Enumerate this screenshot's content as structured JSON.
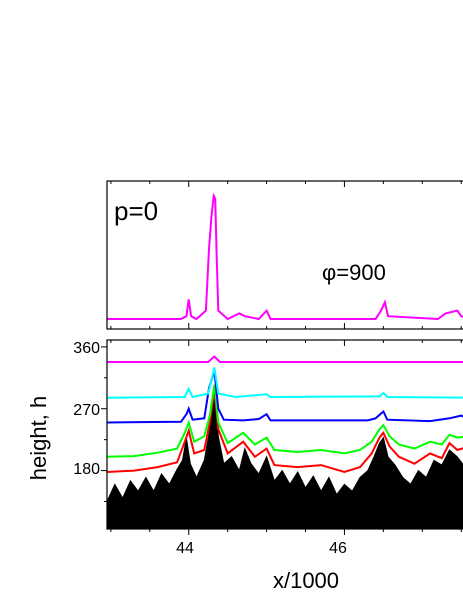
{
  "chart_data": [
    {
      "type": "line",
      "panel": "top",
      "annotations": [
        "p=0",
        "φ=900"
      ],
      "xlim": [
        42.95,
        47.6
      ],
      "y_ticks_labeled": false,
      "grid": false,
      "series": [
        {
          "color": "#ff00ff",
          "points": [
            [
              42.95,
              0
            ],
            [
              43.9,
              0
            ],
            [
              43.97,
              0.1
            ],
            [
              44.0,
              0.7
            ],
            [
              44.03,
              0.1
            ],
            [
              44.1,
              0
            ],
            [
              44.22,
              0.3
            ],
            [
              44.26,
              2.5
            ],
            [
              44.29,
              3.6
            ],
            [
              44.32,
              4.4
            ],
            [
              44.34,
              4.3
            ],
            [
              44.36,
              2.1
            ],
            [
              44.38,
              0.3
            ],
            [
              44.5,
              0
            ],
            [
              44.65,
              0.2
            ],
            [
              44.72,
              0.1
            ],
            [
              44.9,
              0
            ],
            [
              45.0,
              0.3
            ],
            [
              45.05,
              0
            ],
            [
              46.4,
              0
            ],
            [
              46.47,
              0.3
            ],
            [
              46.52,
              0.6
            ],
            [
              46.56,
              0.1
            ],
            [
              47.2,
              0
            ],
            [
              47.3,
              0.2
            ],
            [
              47.45,
              0.3
            ],
            [
              47.5,
              0.1
            ],
            [
              47.6,
              0
            ]
          ]
        }
      ]
    },
    {
      "type": "area",
      "panel": "bottom",
      "xlabel": "x/1000",
      "ylabel": "height, h",
      "xlim": [
        42.95,
        47.6
      ],
      "ylim": [
        95,
        370
      ],
      "x_ticks": [
        44,
        46
      ],
      "y_ticks": [
        180,
        270,
        360
      ],
      "grid": false,
      "series": [
        {
          "color": "#ff00ff",
          "points": [
            [
              42.95,
              338
            ],
            [
              44.25,
              338
            ],
            [
              44.33,
              346
            ],
            [
              44.4,
              338
            ],
            [
              47.6,
              338
            ]
          ]
        },
        {
          "color": "#00ffff",
          "points": [
            [
              42.95,
              286
            ],
            [
              43.95,
              287
            ],
            [
              44.0,
              299
            ],
            [
              44.05,
              287
            ],
            [
              44.25,
              292
            ],
            [
              44.33,
              330
            ],
            [
              44.38,
              292
            ],
            [
              44.6,
              287
            ],
            [
              45.0,
              291
            ],
            [
              45.05,
              287
            ],
            [
              46.45,
              288
            ],
            [
              46.5,
              293
            ],
            [
              46.55,
              287
            ],
            [
              47.6,
              286
            ]
          ]
        },
        {
          "color": "#0000ff",
          "points": [
            [
              42.95,
              250
            ],
            [
              43.9,
              251
            ],
            [
              43.97,
              262
            ],
            [
              44.0,
              270
            ],
            [
              44.05,
              254
            ],
            [
              44.2,
              256
            ],
            [
              44.26,
              300
            ],
            [
              44.33,
              325
            ],
            [
              44.38,
              270
            ],
            [
              44.45,
              254
            ],
            [
              44.7,
              253
            ],
            [
              44.9,
              255
            ],
            [
              45.0,
              262
            ],
            [
              45.05,
              253
            ],
            [
              46.3,
              253
            ],
            [
              46.4,
              256
            ],
            [
              46.5,
              266
            ],
            [
              46.55,
              254
            ],
            [
              47.1,
              252
            ],
            [
              47.35,
              256
            ],
            [
              47.5,
              260
            ],
            [
              47.6,
              254
            ]
          ]
        },
        {
          "color": "#00ff00",
          "points": [
            [
              42.95,
              200
            ],
            [
              43.3,
              201
            ],
            [
              43.6,
              206
            ],
            [
              43.85,
              212
            ],
            [
              43.95,
              235
            ],
            [
              44.0,
              250
            ],
            [
              44.07,
              222
            ],
            [
              44.2,
              230
            ],
            [
              44.27,
              260
            ],
            [
              44.33,
              305
            ],
            [
              44.38,
              250
            ],
            [
              44.5,
              220
            ],
            [
              44.7,
              235
            ],
            [
              44.85,
              218
            ],
            [
              45.0,
              228
            ],
            [
              45.1,
              210
            ],
            [
              45.4,
              207
            ],
            [
              45.7,
              210
            ],
            [
              46.0,
              205
            ],
            [
              46.2,
              210
            ],
            [
              46.35,
              222
            ],
            [
              46.45,
              240
            ],
            [
              46.5,
              246
            ],
            [
              46.58,
              230
            ],
            [
              46.7,
              218
            ],
            [
              46.9,
              212
            ],
            [
              47.1,
              222
            ],
            [
              47.25,
              218
            ],
            [
              47.35,
              232
            ],
            [
              47.45,
              228
            ],
            [
              47.6,
              230
            ]
          ]
        },
        {
          "color": "#ff0000",
          "points": [
            [
              42.95,
              178
            ],
            [
              43.3,
              180
            ],
            [
              43.6,
              185
            ],
            [
              43.85,
              192
            ],
            [
              43.95,
              222
            ],
            [
              44.0,
              238
            ],
            [
              44.07,
              205
            ],
            [
              44.2,
              210
            ],
            [
              44.27,
              250
            ],
            [
              44.33,
              298
            ],
            [
              44.38,
              240
            ],
            [
              44.5,
              205
            ],
            [
              44.7,
              222
            ],
            [
              44.85,
              200
            ],
            [
              45.0,
              212
            ],
            [
              45.1,
              188
            ],
            [
              45.4,
              185
            ],
            [
              45.7,
              188
            ],
            [
              46.0,
              178
            ],
            [
              46.2,
              185
            ],
            [
              46.35,
              205
            ],
            [
              46.45,
              228
            ],
            [
              46.5,
              235
            ],
            [
              46.58,
              215
            ],
            [
              46.7,
              200
            ],
            [
              46.9,
              190
            ],
            [
              47.1,
              205
            ],
            [
              47.25,
              198
            ],
            [
              47.35,
              220
            ],
            [
              47.45,
              210
            ],
            [
              47.6,
              215
            ]
          ]
        },
        {
          "color": "#000000",
          "filled": true,
          "points": [
            [
              42.95,
              135
            ],
            [
              43.05,
              160
            ],
            [
              43.15,
              140
            ],
            [
              43.25,
              165
            ],
            [
              43.35,
              150
            ],
            [
              43.45,
              170
            ],
            [
              43.55,
              150
            ],
            [
              43.65,
              175
            ],
            [
              43.75,
              160
            ],
            [
              43.85,
              182
            ],
            [
              43.92,
              195
            ],
            [
              43.97,
              228
            ],
            [
              44.02,
              190
            ],
            [
              44.1,
              170
            ],
            [
              44.2,
              195
            ],
            [
              44.27,
              240
            ],
            [
              44.33,
              292
            ],
            [
              44.38,
              230
            ],
            [
              44.45,
              190
            ],
            [
              44.55,
              200
            ],
            [
              44.65,
              180
            ],
            [
              44.72,
              212
            ],
            [
              44.8,
              190
            ],
            [
              44.9,
              175
            ],
            [
              45.0,
              200
            ],
            [
              45.1,
              165
            ],
            [
              45.2,
              180
            ],
            [
              45.3,
              160
            ],
            [
              45.4,
              178
            ],
            [
              45.5,
              155
            ],
            [
              45.6,
              172
            ],
            [
              45.7,
              150
            ],
            [
              45.8,
              170
            ],
            [
              45.9,
              145
            ],
            [
              46.0,
              160
            ],
            [
              46.1,
              150
            ],
            [
              46.2,
              170
            ],
            [
              46.3,
              180
            ],
            [
              46.38,
              200
            ],
            [
              46.45,
              220
            ],
            [
              46.5,
              228
            ],
            [
              46.56,
              200
            ],
            [
              46.65,
              188
            ],
            [
              46.75,
              170
            ],
            [
              46.85,
              160
            ],
            [
              46.95,
              180
            ],
            [
              47.05,
              170
            ],
            [
              47.15,
              195
            ],
            [
              47.25,
              188
            ],
            [
              47.35,
              210
            ],
            [
              47.45,
              200
            ],
            [
              47.55,
              185
            ],
            [
              47.6,
              205
            ]
          ]
        }
      ]
    }
  ]
}
